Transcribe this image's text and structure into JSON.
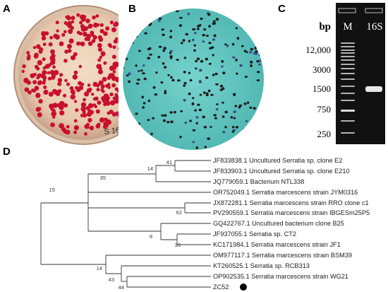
{
  "panels": {
    "a": "A",
    "b": "B",
    "c": "C",
    "d": "D"
  },
  "plate_marking": "S 167",
  "gel": {
    "unit_label": "bp",
    "lane_labels": [
      "M",
      "16S"
    ],
    "marker_sizes": [
      "12,000",
      "3000",
      "1500",
      "750",
      "250"
    ],
    "colors": {
      "gel_bg": "#111111",
      "band": "#e8e8e8"
    }
  },
  "tree": {
    "taxa": [
      "JF833838.1 Uncultured Serratia sp. clone E2",
      "JF833903.1 Uncultured Serratia sp. clone E210",
      "JQ779059.1 Bacterium NTL338",
      "OR752049.1 Serratia marcescens strain JYM0316",
      "JX872281.1 Serratia marcescens strain RRO clone c1",
      "PV290559.1 Serratia marcescens strain IBGESm25P5",
      "GQ422767.1 Uncultured bacterium clone B25",
      "JF937055.1 Serratia sp. CT2",
      "KC171984.1 Serratia marcescens strain JF1",
      "OM977117.1 Serratia marcescens strain BSM39",
      "KT260525.1 Serratia sp. RCB313",
      "OP902535.1 Serratia marcescens strain WG21",
      "ZC52"
    ],
    "bootstrap": [
      "41",
      "14",
      "35",
      "15",
      "62",
      "9",
      "36",
      "14",
      "43",
      "44"
    ]
  },
  "colors": {
    "plate_red": "#c8102e",
    "micro_bg": "#5ec4bf",
    "micro_cell": "#1c1c1c"
  }
}
